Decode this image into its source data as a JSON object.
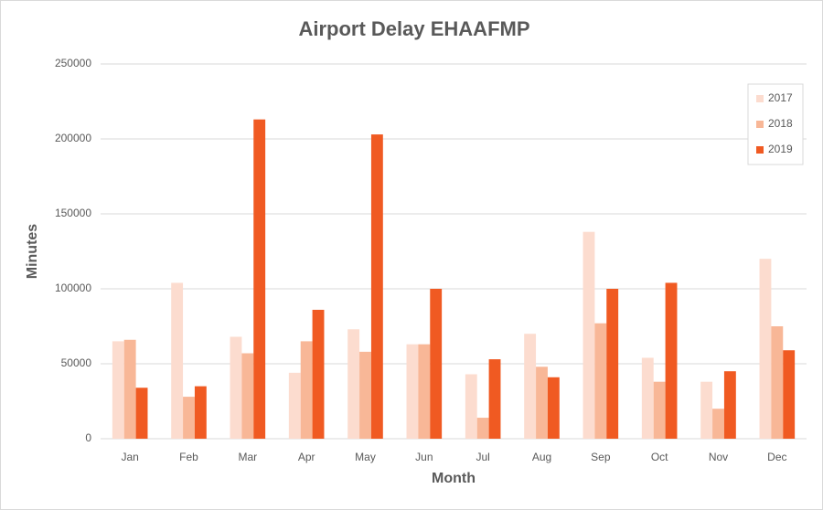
{
  "chart_data": {
    "type": "bar",
    "title": "Airport Delay EHAAFMP",
    "x_label": "Month",
    "y_label": "Minutes",
    "categories": [
      "Jan",
      "Feb",
      "Mar",
      "Apr",
      "May",
      "Jun",
      "Jul",
      "Aug",
      "Sep",
      "Oct",
      "Nov",
      "Dec"
    ],
    "series": [
      {
        "name": "2017",
        "color": "#fcdccf",
        "values": [
          65000,
          104000,
          68000,
          44000,
          73000,
          63000,
          43000,
          70000,
          138000,
          54000,
          38000,
          120000
        ]
      },
      {
        "name": "2018",
        "color": "#f8b797",
        "values": [
          66000,
          28000,
          57000,
          65000,
          58000,
          63000,
          14000,
          48000,
          77000,
          38000,
          20000,
          75000
        ]
      },
      {
        "name": "2019",
        "color": "#f05a22",
        "values": [
          34000,
          35000,
          213000,
          86000,
          203000,
          100000,
          53000,
          41000,
          100000,
          104000,
          45000,
          59000
        ]
      }
    ],
    "ylim": [
      0,
      250000
    ],
    "yticks": [
      0,
      50000,
      100000,
      150000,
      200000,
      250000
    ],
    "grid": true,
    "legend": "top-right"
  }
}
